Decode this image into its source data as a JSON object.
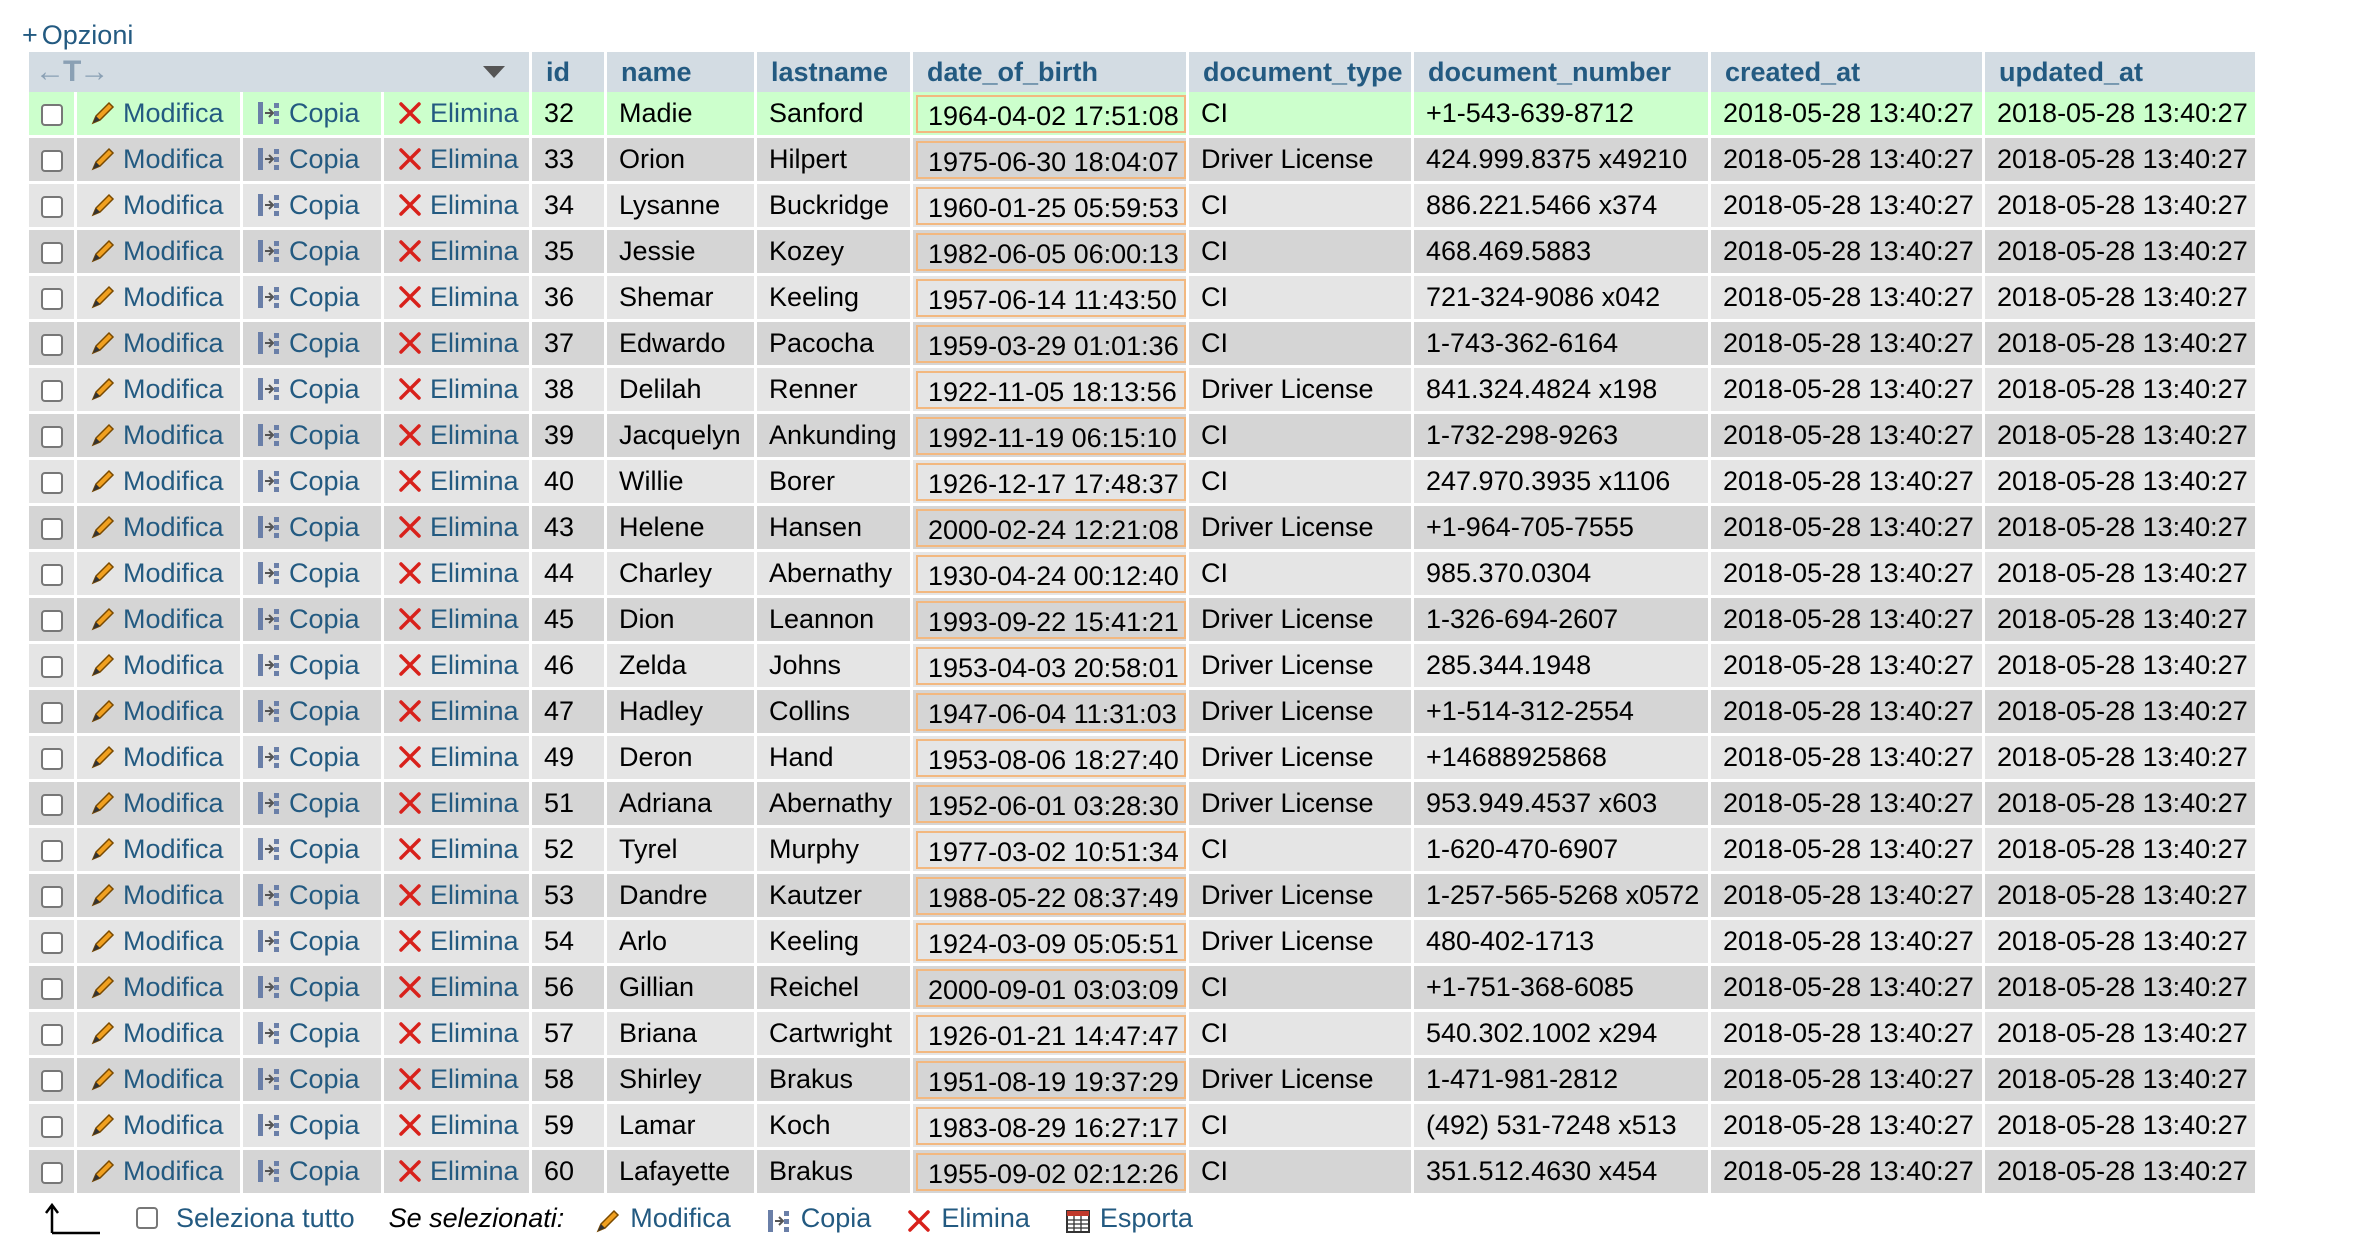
{
  "options_link": {
    "prefix": "+",
    "label": "Opzioni"
  },
  "header_arrows": "←T→",
  "columns": [
    "id",
    "name",
    "lastname",
    "date_of_birth",
    "document_type",
    "document_number",
    "created_at",
    "updated_at"
  ],
  "row_actions": {
    "edit": "Modifica",
    "copy": "Copia",
    "delete": "Elimina"
  },
  "rows": [
    {
      "id": "32",
      "name": "Madie",
      "lastname": "Sanford",
      "dob": "1964-04-02 17:51:08",
      "doc_type": "CI",
      "doc_number": "+1-543-639-8712",
      "created": "2018-05-28 13:40:27",
      "updated": "2018-05-28 13:40:27"
    },
    {
      "id": "33",
      "name": "Orion",
      "lastname": "Hilpert",
      "dob": "1975-06-30 18:04:07",
      "doc_type": "Driver License",
      "doc_number": "424.999.8375 x49210",
      "created": "2018-05-28 13:40:27",
      "updated": "2018-05-28 13:40:27"
    },
    {
      "id": "34",
      "name": "Lysanne",
      "lastname": "Buckridge",
      "dob": "1960-01-25 05:59:53",
      "doc_type": "CI",
      "doc_number": "886.221.5466 x374",
      "created": "2018-05-28 13:40:27",
      "updated": "2018-05-28 13:40:27"
    },
    {
      "id": "35",
      "name": "Jessie",
      "lastname": "Kozey",
      "dob": "1982-06-05 06:00:13",
      "doc_type": "CI",
      "doc_number": "468.469.5883",
      "created": "2018-05-28 13:40:27",
      "updated": "2018-05-28 13:40:27"
    },
    {
      "id": "36",
      "name": "Shemar",
      "lastname": "Keeling",
      "dob": "1957-06-14 11:43:50",
      "doc_type": "CI",
      "doc_number": "721-324-9086 x042",
      "created": "2018-05-28 13:40:27",
      "updated": "2018-05-28 13:40:27"
    },
    {
      "id": "37",
      "name": "Edwardo",
      "lastname": "Pacocha",
      "dob": "1959-03-29 01:01:36",
      "doc_type": "CI",
      "doc_number": "1-743-362-6164",
      "created": "2018-05-28 13:40:27",
      "updated": "2018-05-28 13:40:27"
    },
    {
      "id": "38",
      "name": "Delilah",
      "lastname": "Renner",
      "dob": "1922-11-05 18:13:56",
      "doc_type": "Driver License",
      "doc_number": "841.324.4824 x198",
      "created": "2018-05-28 13:40:27",
      "updated": "2018-05-28 13:40:27"
    },
    {
      "id": "39",
      "name": "Jacquelyn",
      "lastname": "Ankunding",
      "dob": "1992-11-19 06:15:10",
      "doc_type": "CI",
      "doc_number": "1-732-298-9263",
      "created": "2018-05-28 13:40:27",
      "updated": "2018-05-28 13:40:27"
    },
    {
      "id": "40",
      "name": "Willie",
      "lastname": "Borer",
      "dob": "1926-12-17 17:48:37",
      "doc_type": "CI",
      "doc_number": "247.970.3935 x1106",
      "created": "2018-05-28 13:40:27",
      "updated": "2018-05-28 13:40:27"
    },
    {
      "id": "43",
      "name": "Helene",
      "lastname": "Hansen",
      "dob": "2000-02-24 12:21:08",
      "doc_type": "Driver License",
      "doc_number": "+1-964-705-7555",
      "created": "2018-05-28 13:40:27",
      "updated": "2018-05-28 13:40:27"
    },
    {
      "id": "44",
      "name": "Charley",
      "lastname": "Abernathy",
      "dob": "1930-04-24 00:12:40",
      "doc_type": "CI",
      "doc_number": "985.370.0304",
      "created": "2018-05-28 13:40:27",
      "updated": "2018-05-28 13:40:27"
    },
    {
      "id": "45",
      "name": "Dion",
      "lastname": "Leannon",
      "dob": "1993-09-22 15:41:21",
      "doc_type": "Driver License",
      "doc_number": "1-326-694-2607",
      "created": "2018-05-28 13:40:27",
      "updated": "2018-05-28 13:40:27"
    },
    {
      "id": "46",
      "name": "Zelda",
      "lastname": "Johns",
      "dob": "1953-04-03 20:58:01",
      "doc_type": "Driver License",
      "doc_number": "285.344.1948",
      "created": "2018-05-28 13:40:27",
      "updated": "2018-05-28 13:40:27"
    },
    {
      "id": "47",
      "name": "Hadley",
      "lastname": "Collins",
      "dob": "1947-06-04 11:31:03",
      "doc_type": "Driver License",
      "doc_number": "+1-514-312-2554",
      "created": "2018-05-28 13:40:27",
      "updated": "2018-05-28 13:40:27"
    },
    {
      "id": "49",
      "name": "Deron",
      "lastname": "Hand",
      "dob": "1953-08-06 18:27:40",
      "doc_type": "Driver License",
      "doc_number": "+14688925868",
      "created": "2018-05-28 13:40:27",
      "updated": "2018-05-28 13:40:27"
    },
    {
      "id": "51",
      "name": "Adriana",
      "lastname": "Abernathy",
      "dob": "1952-06-01 03:28:30",
      "doc_type": "Driver License",
      "doc_number": "953.949.4537 x603",
      "created": "2018-05-28 13:40:27",
      "updated": "2018-05-28 13:40:27"
    },
    {
      "id": "52",
      "name": "Tyrel",
      "lastname": "Murphy",
      "dob": "1977-03-02 10:51:34",
      "doc_type": "CI",
      "doc_number": "1-620-470-6907",
      "created": "2018-05-28 13:40:27",
      "updated": "2018-05-28 13:40:27"
    },
    {
      "id": "53",
      "name": "Dandre",
      "lastname": "Kautzer",
      "dob": "1988-05-22 08:37:49",
      "doc_type": "Driver License",
      "doc_number": "1-257-565-5268 x0572",
      "created": "2018-05-28 13:40:27",
      "updated": "2018-05-28 13:40:27"
    },
    {
      "id": "54",
      "name": "Arlo",
      "lastname": "Keeling",
      "dob": "1924-03-09 05:05:51",
      "doc_type": "Driver License",
      "doc_number": "480-402-1713",
      "created": "2018-05-28 13:40:27",
      "updated": "2018-05-28 13:40:27"
    },
    {
      "id": "56",
      "name": "Gillian",
      "lastname": "Reichel",
      "dob": "2000-09-01 03:03:09",
      "doc_type": "CI",
      "doc_number": "+1-751-368-6085",
      "created": "2018-05-28 13:40:27",
      "updated": "2018-05-28 13:40:27"
    },
    {
      "id": "57",
      "name": "Briana",
      "lastname": "Cartwright",
      "dob": "1926-01-21 14:47:47",
      "doc_type": "CI",
      "doc_number": "540.302.1002 x294",
      "created": "2018-05-28 13:40:27",
      "updated": "2018-05-28 13:40:27"
    },
    {
      "id": "58",
      "name": "Shirley",
      "lastname": "Brakus",
      "dob": "1951-08-19 19:37:29",
      "doc_type": "Driver License",
      "doc_number": "1-471-981-2812",
      "created": "2018-05-28 13:40:27",
      "updated": "2018-05-28 13:40:27"
    },
    {
      "id": "59",
      "name": "Lamar",
      "lastname": "Koch",
      "dob": "1983-08-29 16:27:17",
      "doc_type": "CI",
      "doc_number": "(492) 531-7248 x513",
      "created": "2018-05-28 13:40:27",
      "updated": "2018-05-28 13:40:27"
    },
    {
      "id": "60",
      "name": "Lafayette",
      "lastname": "Brakus",
      "dob": "1955-09-02 02:12:26",
      "doc_type": "CI",
      "doc_number": "351.512.4630 x454",
      "created": "2018-05-28 13:40:27",
      "updated": "2018-05-28 13:40:27"
    }
  ],
  "footer": {
    "select_all": "Seleziona tutto",
    "with_selected": "Se selezionati:",
    "edit": "Modifica",
    "copy": "Copia",
    "delete": "Elimina",
    "export": "Esporta"
  },
  "colors": {
    "link": "#235a81",
    "header_bg": "#d3dce3",
    "row_odd": "#e5e5e5",
    "row_even": "#d5d5d5",
    "row_highlight": "#ccffcc",
    "date_border": "#f2b880",
    "delete_icon": "#d8211b"
  },
  "icons": {
    "edit": "pencil-icon",
    "copy": "copy-insert-icon",
    "delete": "delete-x-icon",
    "export": "export-table-icon",
    "select_arrow": "select-all-arrow-icon",
    "sort_menu": "triangle-down-icon"
  }
}
